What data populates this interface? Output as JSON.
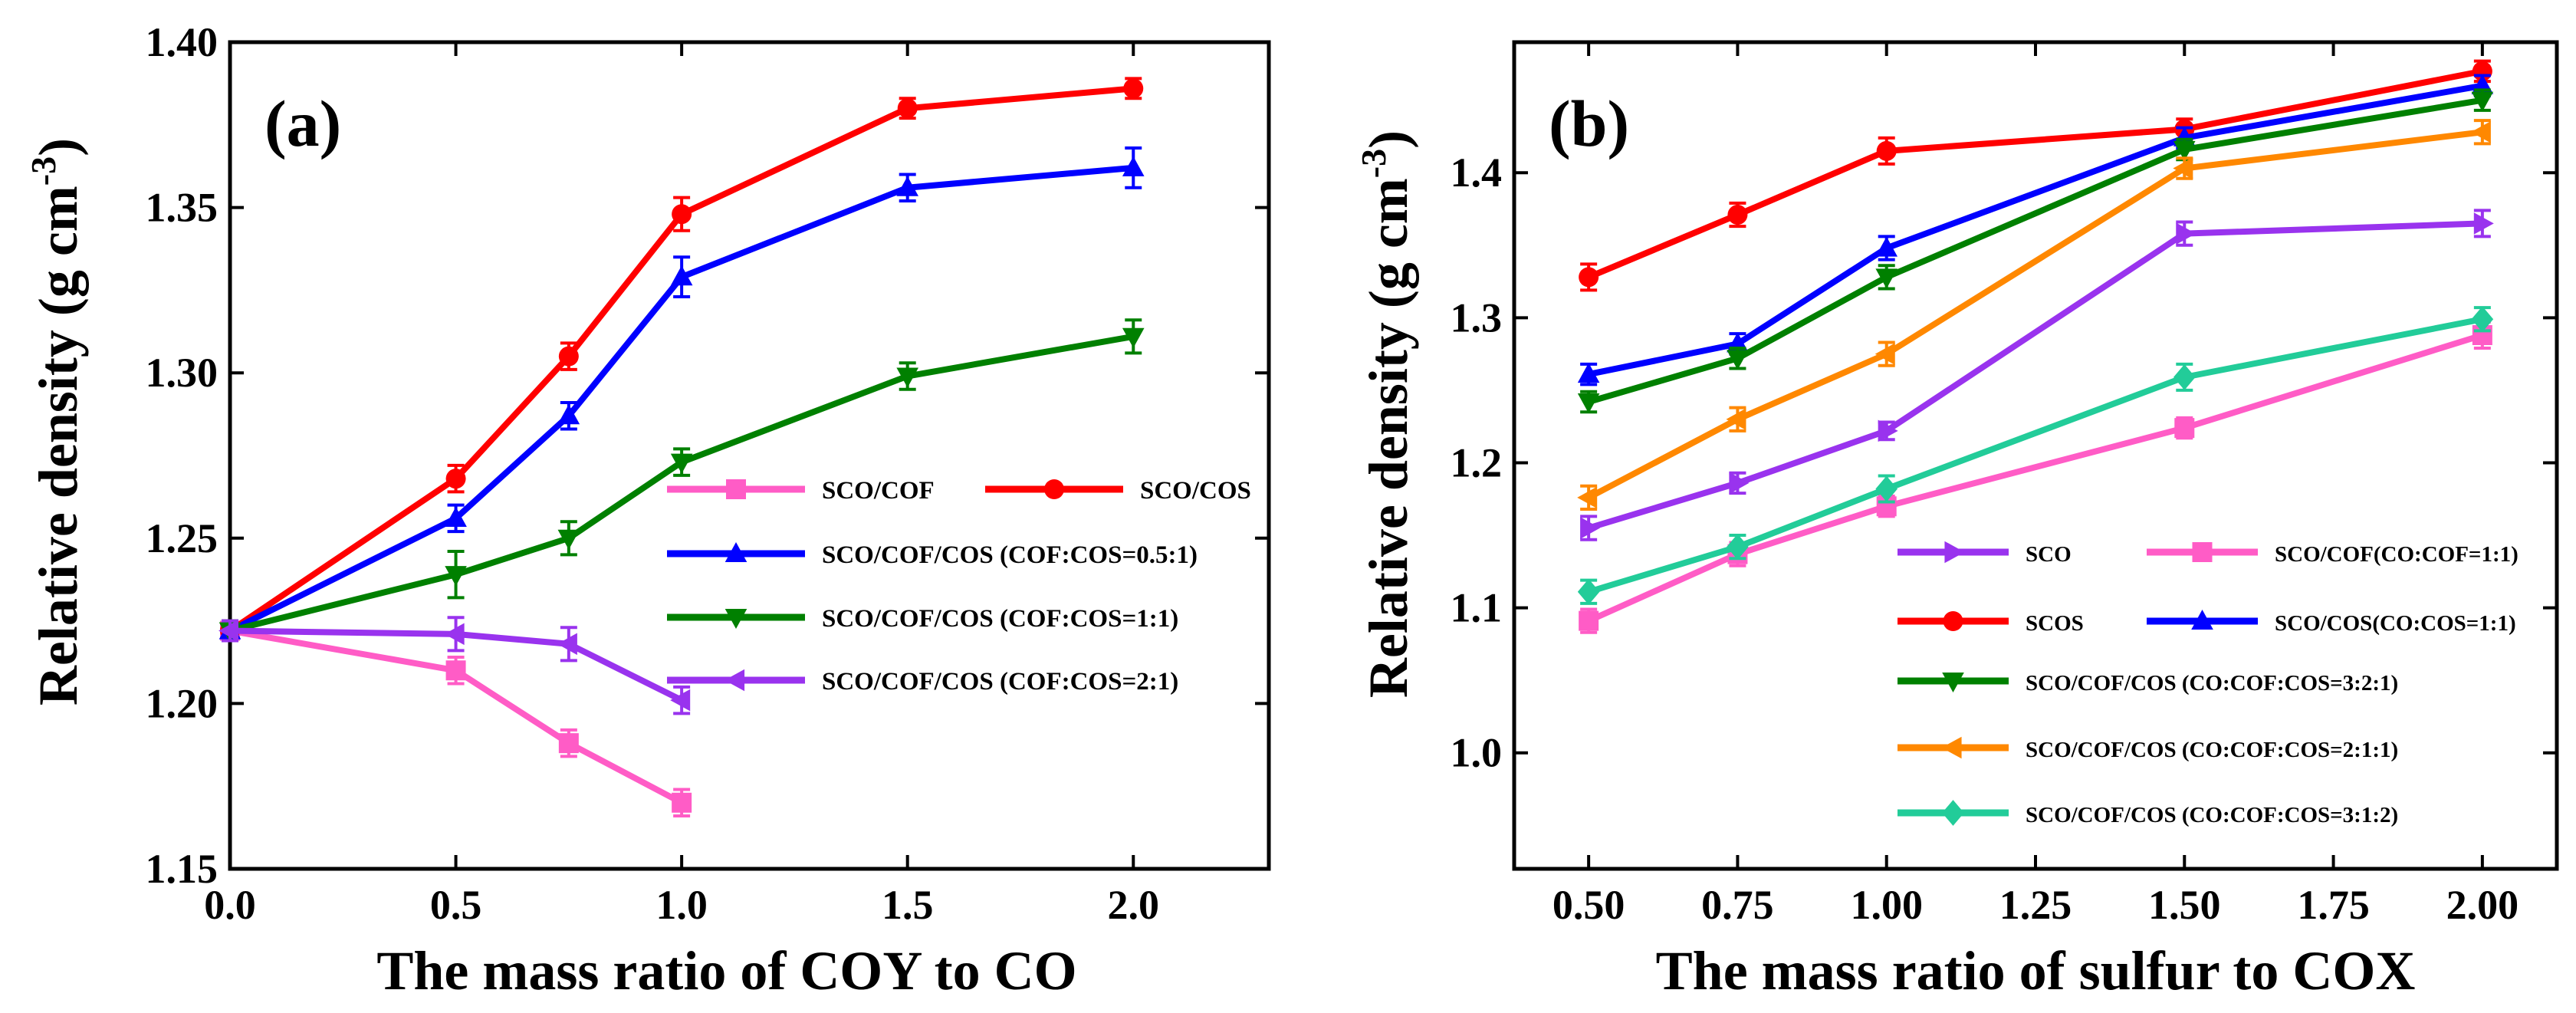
{
  "chart_data": [
    {
      "panel": "(a)",
      "type": "line",
      "xlabel": "The mass ratio of COY to CO",
      "ylabel": "Relative density",
      "ylabel_unit": "(g cm",
      "ylabel_sup": "-3",
      "ylabel_close": ")",
      "xlim": [
        0.0,
        2.3
      ],
      "ylim": [
        1.15,
        1.4
      ],
      "xticks": [
        0.0,
        0.5,
        1.0,
        1.5,
        2.0
      ],
      "xtick_labels": [
        "0.0",
        "0.5",
        "1.0",
        "1.5",
        "2.0"
      ],
      "yticks": [
        1.15,
        1.2,
        1.25,
        1.3,
        1.35,
        1.4
      ],
      "ytick_labels": [
        "1.15",
        "1.20",
        "1.25",
        "1.30",
        "1.35",
        "1.40"
      ],
      "legend_position": "bottom-right",
      "series": [
        {
          "name": "SCO/COF",
          "color": "#ff5cc6",
          "marker": "square",
          "x": [
            0.0,
            0.5,
            0.75,
            1.0
          ],
          "y": [
            1.222,
            1.21,
            1.188,
            1.17
          ],
          "err": [
            0.003,
            0.004,
            0.004,
            0.004
          ]
        },
        {
          "name": "SCO/COS",
          "color": "#ff0000",
          "marker": "circle",
          "x": [
            0.0,
            0.5,
            0.75,
            1.0,
            1.5,
            2.0
          ],
          "y": [
            1.222,
            1.268,
            1.305,
            1.348,
            1.38,
            1.386
          ],
          "err": [
            0.003,
            0.004,
            0.004,
            0.005,
            0.003,
            0.003
          ]
        },
        {
          "name": "SCO/COF/COS (COF:COS=0.5:1)",
          "color": "#0000ff",
          "marker": "triangle-up",
          "x": [
            0.0,
            0.5,
            0.75,
            1.0,
            1.5,
            2.0
          ],
          "y": [
            1.222,
            1.256,
            1.287,
            1.329,
            1.356,
            1.362
          ],
          "err": [
            0.003,
            0.004,
            0.004,
            0.006,
            0.004,
            0.006
          ]
        },
        {
          "name": "SCO/COF/COS (COF:COS=1:1)",
          "color": "#008000",
          "marker": "triangle-down",
          "x": [
            0.0,
            0.5,
            0.75,
            1.0,
            1.5,
            2.0
          ],
          "y": [
            1.222,
            1.239,
            1.25,
            1.273,
            1.299,
            1.311
          ],
          "err": [
            0.003,
            0.007,
            0.005,
            0.004,
            0.004,
            0.005
          ]
        },
        {
          "name": "SCO/COF/COS (COF:COS=2:1)",
          "color": "#9933ee",
          "marker": "triangle-left",
          "x": [
            0.0,
            0.5,
            0.75,
            1.0
          ],
          "y": [
            1.222,
            1.221,
            1.218,
            1.201
          ],
          "err": [
            0.003,
            0.005,
            0.005,
            0.004
          ]
        }
      ]
    },
    {
      "panel": "(b)",
      "type": "line",
      "xlabel": "The mass ratio of sulfur to COX",
      "ylabel": "Relative density",
      "ylabel_unit": "(g cm",
      "ylabel_sup": "-3",
      "ylabel_close": ")",
      "xlim": [
        0.375,
        2.125
      ],
      "ylim": [
        0.92,
        1.49
      ],
      "xticks": [
        0.5,
        0.75,
        1.0,
        1.25,
        1.5,
        1.75,
        2.0
      ],
      "xtick_labels": [
        "0.50",
        "0.75",
        "1.00",
        "1.25",
        "1.50",
        "1.75",
        "2.00"
      ],
      "yticks": [
        1.0,
        1.1,
        1.2,
        1.3,
        1.4
      ],
      "ytick_labels": [
        "1.0",
        "1.1",
        "1.2",
        "1.3",
        "1.4"
      ],
      "legend_position": "bottom-right",
      "series": [
        {
          "name": "SCO",
          "color": "#9933ee",
          "marker": "triangle-right",
          "x": [
            0.5,
            0.75,
            1.0,
            1.5,
            2.0
          ],
          "y": [
            1.155,
            1.186,
            1.222,
            1.358,
            1.365
          ],
          "err": [
            0.008,
            0.007,
            0.006,
            0.008,
            0.009
          ]
        },
        {
          "name": "SCO/COF(CO:COF=1:1)",
          "color": "#ff5cc6",
          "marker": "square",
          "x": [
            0.5,
            0.75,
            1.0,
            1.5,
            2.0
          ],
          "y": [
            1.091,
            1.137,
            1.17,
            1.224,
            1.288
          ],
          "err": [
            0.008,
            0.008,
            0.007,
            0.007,
            0.009
          ]
        },
        {
          "name": "SCOS",
          "color": "#ff0000",
          "marker": "circle",
          "x": [
            0.5,
            0.75,
            1.0,
            1.5,
            2.0
          ],
          "y": [
            1.328,
            1.371,
            1.415,
            1.43,
            1.47
          ],
          "err": [
            0.009,
            0.008,
            0.009,
            0.007,
            0.007
          ]
        },
        {
          "name": "SCO/COS(CO:COS=1:1)",
          "color": "#0000ff",
          "marker": "triangle-up",
          "x": [
            0.5,
            0.75,
            1.0,
            1.5,
            2.0
          ],
          "y": [
            1.261,
            1.282,
            1.348,
            1.424,
            1.46
          ],
          "err": [
            0.007,
            0.007,
            0.008,
            0.007,
            0.007
          ]
        },
        {
          "name": "SCO/COF/COS (CO:COF:COS=3:2:1)",
          "color": "#008000",
          "marker": "triangle-down",
          "x": [
            0.5,
            0.75,
            1.0,
            1.5,
            2.0
          ],
          "y": [
            1.242,
            1.272,
            1.328,
            1.416,
            1.45
          ],
          "err": [
            0.007,
            0.007,
            0.008,
            0.007,
            0.007
          ]
        },
        {
          "name": "SCO/COF/COS (CO:COF:COS=2:1:1)",
          "color": "#ff8800",
          "marker": "triangle-left",
          "x": [
            0.5,
            0.75,
            1.0,
            1.5,
            2.0
          ],
          "y": [
            1.176,
            1.23,
            1.275,
            1.403,
            1.428
          ],
          "err": [
            0.008,
            0.008,
            0.008,
            0.007,
            0.008
          ]
        },
        {
          "name": "SCO/COF/COS (CO:COF:COS=3:1:2)",
          "color": "#22cc99",
          "marker": "diamond",
          "x": [
            0.5,
            0.75,
            1.0,
            1.5,
            2.0
          ],
          "y": [
            1.111,
            1.142,
            1.182,
            1.259,
            1.299
          ],
          "err": [
            0.008,
            0.008,
            0.009,
            0.009,
            0.008
          ]
        }
      ]
    }
  ]
}
